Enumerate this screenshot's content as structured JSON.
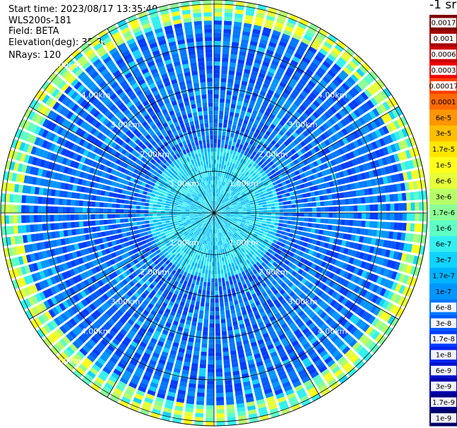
{
  "header": {
    "start_time": "Start time: 2023/08/17 13:35:40",
    "instrument": "WLS200s-181",
    "field": "Field: BETA",
    "elevation": "Elevation(deg): 35.30",
    "nrays": "NRays: 120"
  },
  "colorbar": {
    "title": "-1 sr",
    "labels": [
      "0.0017",
      "0.001",
      "0.0006",
      "0.0003",
      "0.00017",
      "0.0001",
      "6e-5",
      "3e-5",
      "1.7e-5",
      "1e-5",
      "6e-6",
      "3e-6",
      "1.7e-6",
      "1e-6",
      "6e-7",
      "3e-7",
      "1.7e-7",
      "1e-7",
      "6e-8",
      "3e-8",
      "1.7e-8",
      "1e-8",
      "6e-9",
      "3e-9",
      "1.7e-9",
      "1e-9"
    ],
    "colors": [
      "#7f0000",
      "#a50000",
      "#cc0000",
      "#ee0000",
      "#ff3c00",
      "#ff6a00",
      "#ff9600",
      "#ffbf00",
      "#ffe600",
      "#ffff1a",
      "#e6ff38",
      "#b8ff68",
      "#8cff95",
      "#5effc4",
      "#33f0f0",
      "#12d2ff",
      "#00b4ff",
      "#0096ff",
      "#0078ff",
      "#005aff",
      "#003cff",
      "#0022ee",
      "#0010cc",
      "#0000aa",
      "#00008a",
      "#000068"
    ]
  },
  "chart_data": {
    "type": "ppi",
    "field": "BETA",
    "units": "-1 sr",
    "nrays": 120,
    "elevation_deg": 35.3,
    "max_range_km": 5.1,
    "range_rings_km": [
      1,
      2,
      3,
      4,
      5
    ],
    "ring_labels": [
      "1.00km",
      "2.00km",
      "3.00km",
      "4.00km",
      "5.00km"
    ],
    "background_level": "3e-8",
    "near_range_level": "1.7e-7",
    "far_edge_level": "1e-5"
  }
}
